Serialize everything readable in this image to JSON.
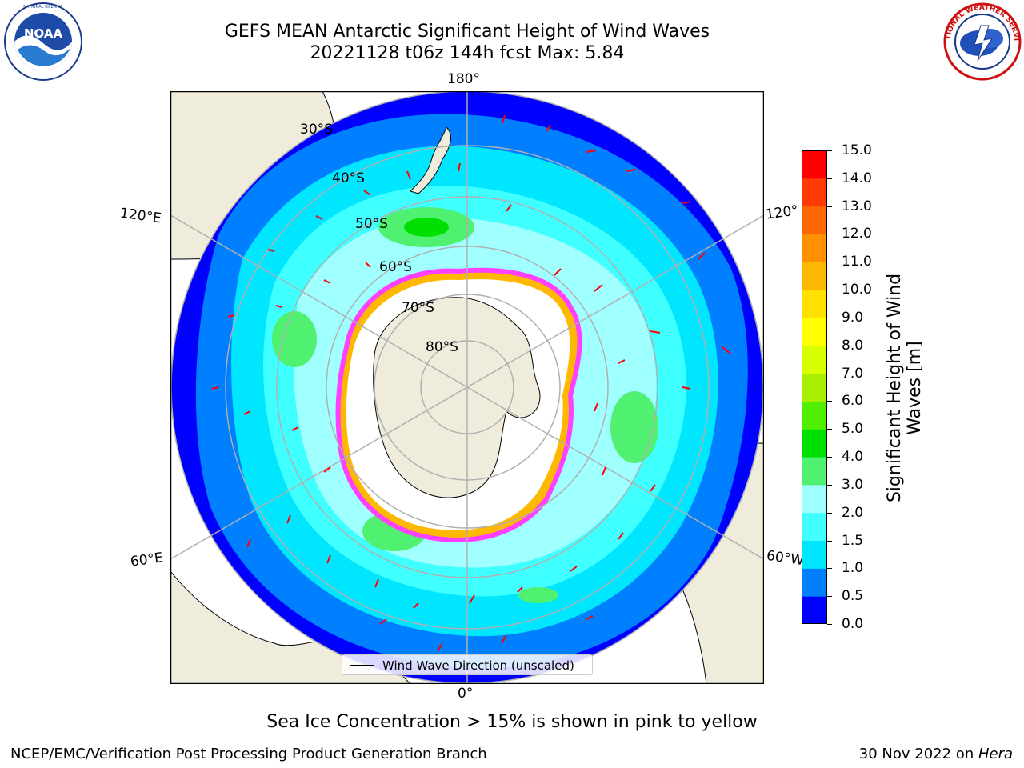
{
  "title": {
    "line1": "GEFS MEAN Antarctic Significant Height of Wind Waves",
    "line2": "20221128 t06z 144h fcst   Max: 5.84"
  },
  "logos": {
    "noaa": {
      "name": "noaa-logo",
      "text": "NOAA",
      "ring_text": "NATIONAL OCEANIC AND ATMOSPHERIC ADMINISTRATION · U.S. DEPARTMENT OF COMMERCE"
    },
    "nws": {
      "name": "nws-logo",
      "ring_text": "NATIONAL WEATHER SERVICE"
    }
  },
  "map": {
    "projection": "south-polar-stereographic",
    "lon_labels": [
      "180°",
      "120°E",
      "120°",
      "60°E",
      "60°W",
      "0°"
    ],
    "lat_labels": [
      "30°S",
      "40°S",
      "50°S",
      "60°S",
      "70°S",
      "80°S"
    ],
    "colors": {
      "land": "#efecdc",
      "ice": "#ffffff",
      "grid": "#b0b0b0",
      "arrow": "#ff0000"
    }
  },
  "colorbar": {
    "label": "Significant Height of Wind Waves [m]",
    "label_line1": "Significant Height of Wind",
    "label_line2": "Waves [m]",
    "ticks": [
      "15.0",
      "14.0",
      "13.0",
      "12.0",
      "11.0",
      "10.0",
      "9.0",
      "8.0",
      "7.0",
      "6.0",
      "5.0",
      "4.0",
      "3.0",
      "2.0",
      "1.5",
      "1.0",
      "0.5",
      "0.0"
    ],
    "colors": [
      "#0000ff",
      "#0080ff",
      "#00e6ff",
      "#40ffff",
      "#a0ffff",
      "#50f070",
      "#00e000",
      "#50f000",
      "#a8f000",
      "#d8ff00",
      "#ffff00",
      "#ffe000",
      "#ffb800",
      "#ff9000",
      "#ff6800",
      "#ff3a00",
      "#ff0000"
    ]
  },
  "legend": {
    "label": "Wind Wave Direction (unscaled)"
  },
  "note": "Sea Ice Concentration > 15% is shown in pink to yellow",
  "footer": {
    "left": "NCEP/EMC/Verification Post Processing Product Generation Branch",
    "right_date": "30 Nov 2022 on ",
    "right_host": "Hera"
  }
}
